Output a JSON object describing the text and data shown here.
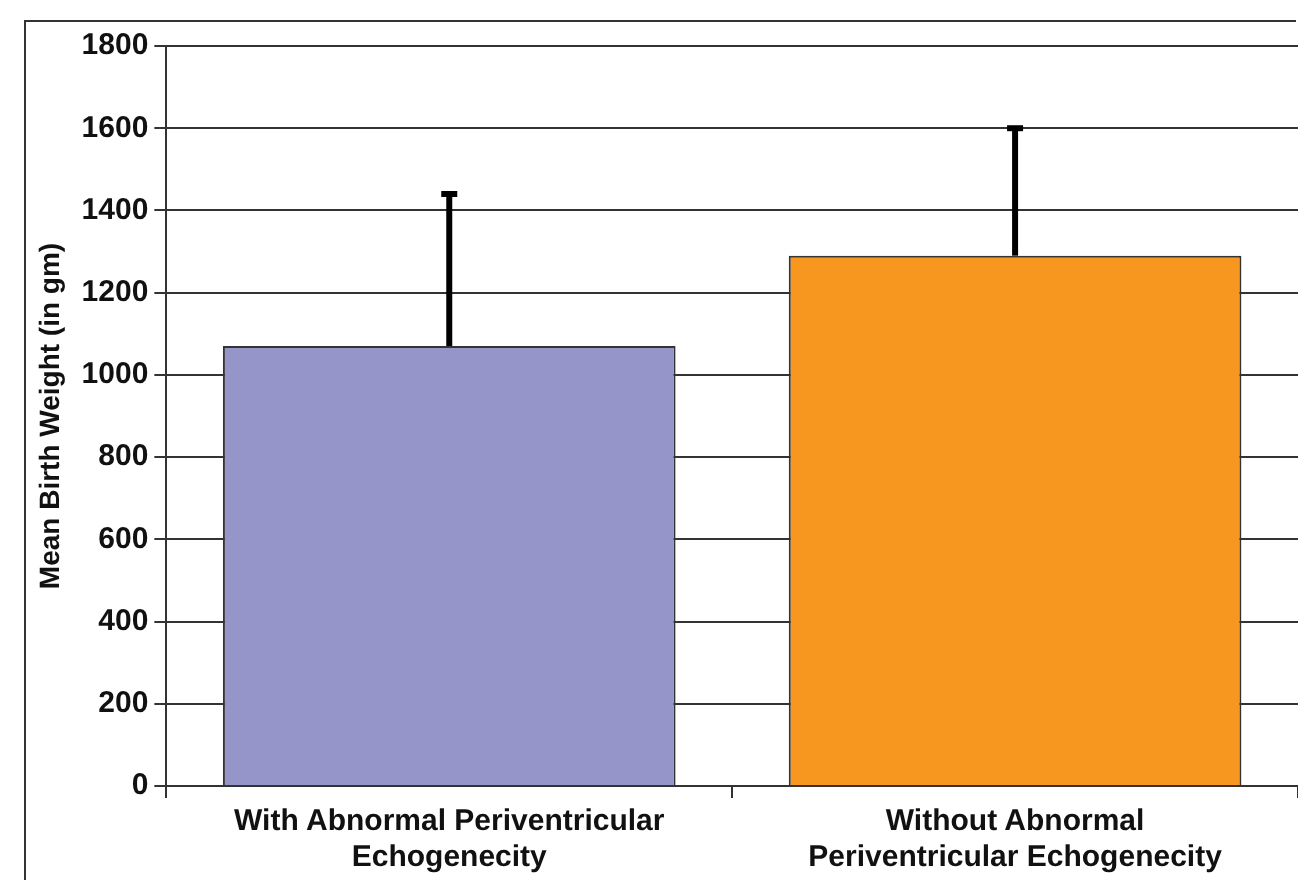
{
  "chart_data": {
    "type": "bar",
    "ylabel": "Mean Birth Weight (in gm)",
    "categories": [
      "With Abnormal Periventricular Echogenecity",
      "Without Abnormal Periventricular Echogenecity"
    ],
    "values": [
      1070,
      1290
    ],
    "colors": [
      "#9595c9",
      "#f7971f"
    ],
    "errors": [
      [
        1070,
        1440
      ],
      [
        1290,
        1600
      ]
    ],
    "ylim": [
      0,
      1800
    ],
    "yticks": [
      0,
      200,
      400,
      600,
      800,
      1000,
      1200,
      1400,
      1600,
      1800
    ],
    "grid": "y",
    "legend": false
  }
}
